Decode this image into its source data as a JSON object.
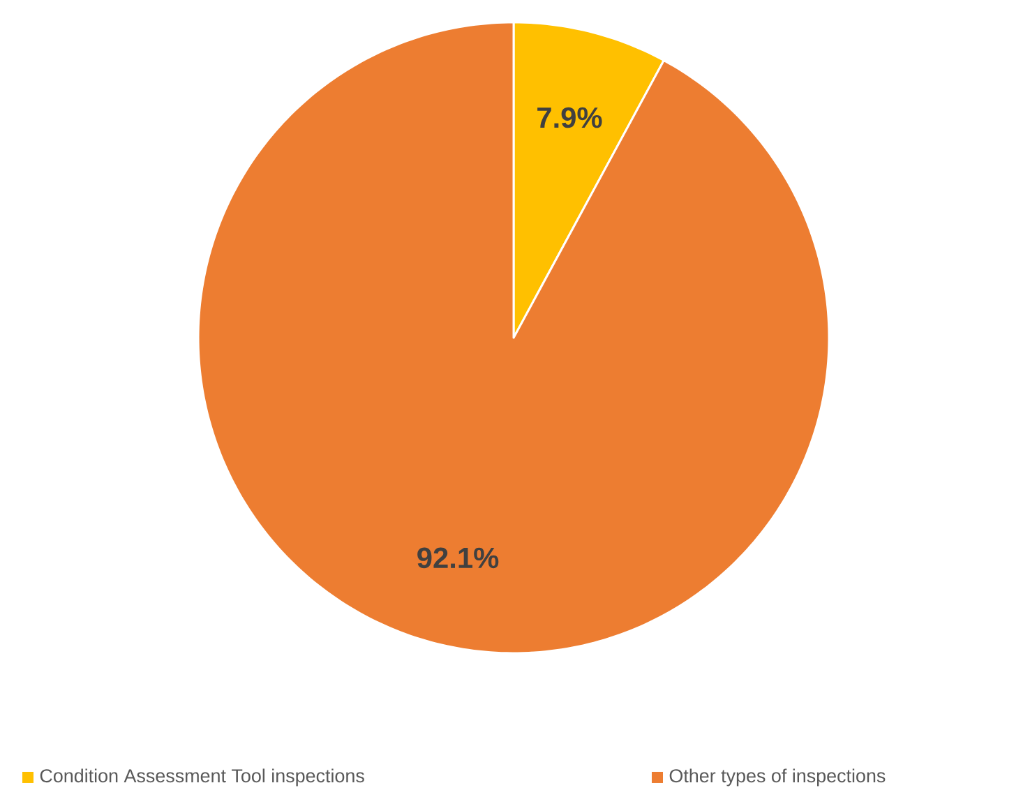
{
  "chart_data": {
    "type": "pie",
    "categories": [
      "Condition Assessment Tool inspections",
      "Other types of inspections"
    ],
    "values": [
      7.9,
      92.1
    ],
    "colors": [
      "#ffc000",
      "#ed7d31"
    ],
    "value_labels": [
      "7.9%",
      "92.1%"
    ],
    "legend": "bottom"
  }
}
